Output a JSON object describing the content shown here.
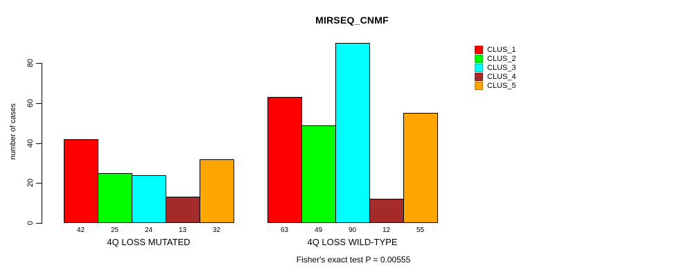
{
  "chart_data": {
    "type": "bar",
    "title": "MIRSEQ_CNMF",
    "ylabel": "number of cases",
    "xlabel": "",
    "categories": [
      "4Q LOSS MUTATED",
      "4Q LOSS WILD-TYPE"
    ],
    "series": [
      {
        "name": "CLUS_1",
        "color": "#FF0000",
        "values": [
          42,
          63
        ]
      },
      {
        "name": "CLUS_2",
        "color": "#00FF00",
        "values": [
          25,
          49
        ]
      },
      {
        "name": "CLUS_3",
        "color": "#00FFFF",
        "values": [
          24,
          90
        ]
      },
      {
        "name": "CLUS_4",
        "color": "#A52A2A",
        "values": [
          13,
          12
        ]
      },
      {
        "name": "CLUS_5",
        "color": "#FFA500",
        "values": [
          32,
          55
        ]
      }
    ],
    "bar_value_labels": [
      [
        42,
        25,
        24,
        13,
        32
      ],
      [
        63,
        49,
        90,
        12,
        55
      ]
    ],
    "yticks": [
      0,
      20,
      40,
      60,
      80
    ],
    "ylim": [
      0,
      90
    ],
    "grid": false,
    "legend_position": "right",
    "annotation": "Fisher's exact test P = 0.00555"
  },
  "colors": {
    "background": "#FFFFFF",
    "axis": "#000000",
    "text": "#000000",
    "bar_border": "#000000"
  }
}
